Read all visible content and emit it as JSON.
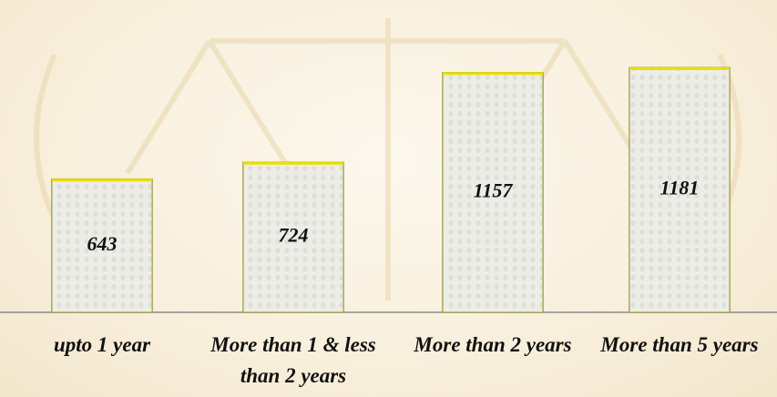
{
  "chart_data": {
    "type": "bar",
    "categories": [
      "upto 1 year",
      "More than 1 & less than 2 years",
      "More than 2 years",
      "More than 5 years"
    ],
    "values": [
      643,
      724,
      1157,
      1181
    ],
    "color": "#ecebe4",
    "ylim": [
      0,
      1400
    ]
  }
}
